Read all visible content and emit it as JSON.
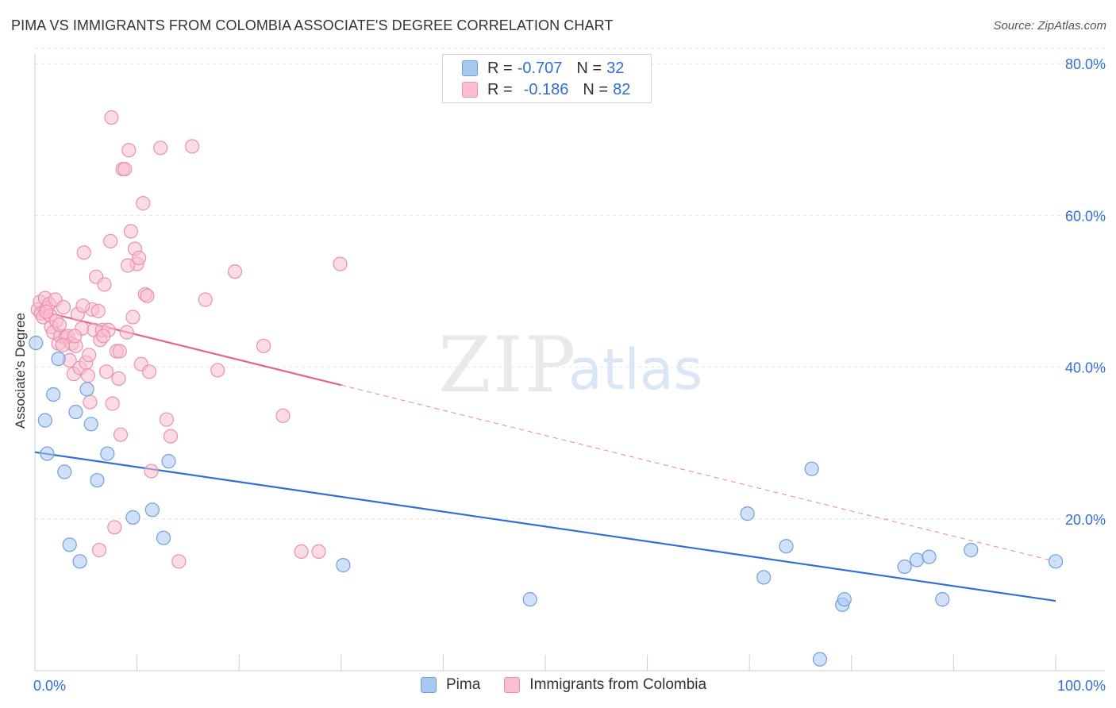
{
  "title": "PIMA VS IMMIGRANTS FROM COLOMBIA ASSOCIATE'S DEGREE CORRELATION CHART",
  "source": "Source: ZipAtlas.com",
  "watermark": {
    "zip": "ZIP",
    "atlas": "atlas"
  },
  "legend": {
    "rows": [
      {
        "r_label": "R =",
        "r_value": "-0.707",
        "n_label": "N =",
        "n_value": "32"
      },
      {
        "r_label": "R =",
        "r_value": "-0.186",
        "n_label": "N =",
        "n_value": "82"
      }
    ]
  },
  "chart_data": {
    "type": "scatter",
    "title": "PIMA VS IMMIGRANTS FROM COLOMBIA ASSOCIATE'S DEGREE CORRELATION CHART",
    "xlabel": "",
    "ylabel": "Associate's Degree",
    "xlim": [
      0,
      100
    ],
    "ylim": [
      0,
      82
    ],
    "x_tick_labels": [
      "0.0%",
      "100.0%"
    ],
    "y_ticks": [
      20,
      40,
      60,
      80
    ],
    "y_tick_labels": [
      "20.0%",
      "40.0%",
      "60.0%",
      "80.0%"
    ],
    "grid": true,
    "legend_position": "top-center",
    "colors": {
      "pima_fill": "#a9c8f0",
      "pima_stroke": "#6f9fe0",
      "pima_line": "#2f6fd6",
      "colombia_fill": "#f7bfd0",
      "colombia_stroke": "#ec8fab",
      "colombia_line": "#e8618c",
      "tick_label": "#2f6fd6",
      "grid": "#e4e4e4"
    },
    "series": [
      {
        "name": "Pima",
        "r": -0.707,
        "n": 32,
        "trend": {
          "x": [
            0,
            100
          ],
          "y": [
            28.8,
            9.2
          ],
          "dashed_from": null
        },
        "points": [
          [
            0.1,
            43.2
          ],
          [
            1.0,
            33.0
          ],
          [
            1.2,
            28.6
          ],
          [
            1.8,
            36.4
          ],
          [
            2.3,
            41.1
          ],
          [
            2.9,
            26.2
          ],
          [
            3.4,
            16.6
          ],
          [
            4.0,
            34.1
          ],
          [
            4.4,
            14.4
          ],
          [
            5.1,
            37.1
          ],
          [
            5.5,
            32.5
          ],
          [
            6.1,
            25.1
          ],
          [
            7.1,
            28.6
          ],
          [
            9.6,
            20.2
          ],
          [
            11.5,
            21.2
          ],
          [
            12.6,
            17.5
          ],
          [
            13.1,
            27.6
          ],
          [
            30.2,
            13.9
          ],
          [
            48.5,
            9.4
          ],
          [
            69.8,
            20.7
          ],
          [
            71.4,
            12.3
          ],
          [
            73.6,
            16.4
          ],
          [
            76.1,
            26.6
          ],
          [
            79.1,
            8.7
          ],
          [
            79.3,
            9.4
          ],
          [
            85.2,
            13.7
          ],
          [
            86.4,
            14.6
          ],
          [
            87.6,
            15.0
          ],
          [
            88.9,
            9.4
          ],
          [
            91.7,
            15.9
          ],
          [
            100.0,
            14.4
          ],
          [
            76.9,
            1.5
          ]
        ]
      },
      {
        "name": "Immigrants from Colombia",
        "r": -0.186,
        "n": 82,
        "trend": {
          "x": [
            0,
            100
          ],
          "y": [
            47.6,
            14.4
          ],
          "dashed_from": 30
        },
        "points": [
          [
            0.3,
            47.6
          ],
          [
            0.5,
            48.6
          ],
          [
            0.6,
            47.1
          ],
          [
            0.8,
            46.6
          ],
          [
            1.0,
            49.1
          ],
          [
            1.2,
            47.8
          ],
          [
            1.4,
            48.3
          ],
          [
            1.5,
            46.8
          ],
          [
            1.6,
            45.3
          ],
          [
            1.8,
            44.6
          ],
          [
            2.0,
            48.9
          ],
          [
            2.1,
            46.1
          ],
          [
            2.3,
            43.1
          ],
          [
            2.5,
            44.1
          ],
          [
            2.8,
            47.9
          ],
          [
            3.0,
            43.9
          ],
          [
            3.2,
            44.1
          ],
          [
            3.4,
            40.9
          ],
          [
            3.6,
            43.1
          ],
          [
            3.8,
            39.1
          ],
          [
            4.0,
            42.8
          ],
          [
            4.2,
            47.0
          ],
          [
            4.4,
            39.9
          ],
          [
            4.6,
            45.1
          ],
          [
            4.8,
            55.1
          ],
          [
            5.0,
            40.6
          ],
          [
            5.2,
            38.9
          ],
          [
            5.4,
            35.4
          ],
          [
            5.6,
            47.6
          ],
          [
            5.8,
            44.9
          ],
          [
            6.0,
            51.9
          ],
          [
            6.2,
            47.4
          ],
          [
            6.4,
            43.6
          ],
          [
            6.6,
            44.9
          ],
          [
            6.8,
            50.9
          ],
          [
            7.0,
            39.4
          ],
          [
            7.2,
            44.9
          ],
          [
            7.4,
            56.6
          ],
          [
            7.6,
            35.2
          ],
          [
            7.8,
            18.9
          ],
          [
            8.0,
            42.1
          ],
          [
            8.2,
            38.5
          ],
          [
            8.4,
            31.1
          ],
          [
            8.6,
            66.1
          ],
          [
            8.8,
            66.1
          ],
          [
            9.0,
            44.6
          ],
          [
            9.2,
            68.6
          ],
          [
            9.4,
            57.9
          ],
          [
            9.6,
            46.6
          ],
          [
            9.8,
            55.6
          ],
          [
            10.0,
            53.6
          ],
          [
            10.2,
            54.4
          ],
          [
            10.4,
            40.4
          ],
          [
            10.6,
            61.6
          ],
          [
            10.8,
            49.6
          ],
          [
            11.0,
            49.4
          ],
          [
            11.2,
            39.4
          ],
          [
            11.4,
            26.3
          ],
          [
            12.3,
            68.9
          ],
          [
            12.9,
            33.1
          ],
          [
            13.3,
            30.9
          ],
          [
            14.1,
            14.4
          ],
          [
            15.4,
            69.1
          ],
          [
            16.7,
            48.9
          ],
          [
            17.9,
            39.6
          ],
          [
            19.6,
            52.6
          ],
          [
            22.4,
            42.8
          ],
          [
            24.3,
            33.6
          ],
          [
            26.1,
            15.7
          ],
          [
            27.8,
            15.7
          ],
          [
            29.9,
            53.6
          ],
          [
            7.5,
            72.9
          ],
          [
            2.7,
            42.9
          ],
          [
            3.9,
            44.1
          ],
          [
            5.3,
            41.6
          ],
          [
            6.7,
            44.1
          ],
          [
            8.3,
            42.1
          ],
          [
            9.1,
            53.4
          ],
          [
            6.3,
            15.9
          ],
          [
            1.1,
            47.3
          ],
          [
            2.4,
            45.6
          ],
          [
            4.7,
            48.1
          ]
        ]
      }
    ]
  },
  "bottom_legend": {
    "items": [
      "Pima",
      "Immigrants from Colombia"
    ]
  }
}
